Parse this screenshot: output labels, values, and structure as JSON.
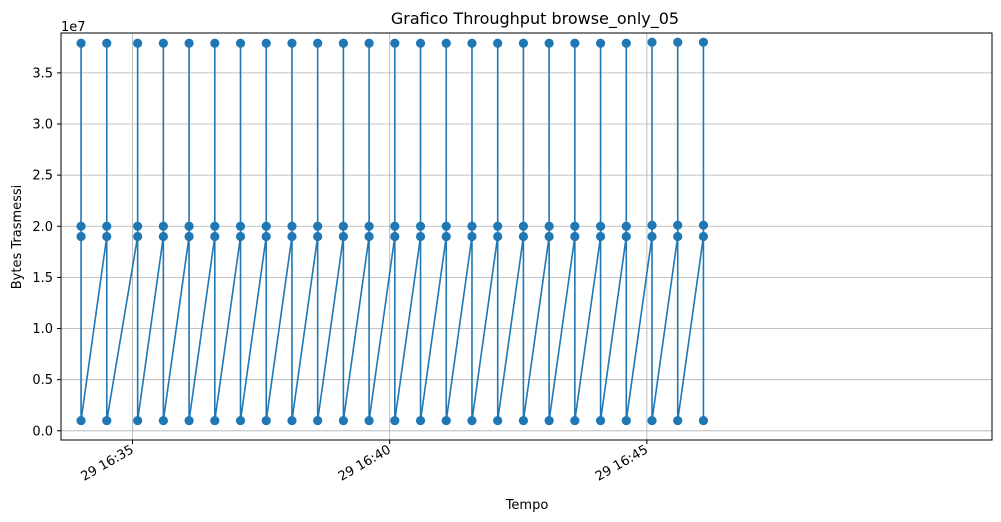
{
  "chart_data": {
    "type": "line",
    "title": "Grafico Throughput browse_only_05",
    "xlabel": "Tempo",
    "ylabel": "Bytes Trasmessi",
    "y_offset_label": "1e7",
    "ylim": [
      -0.09,
      3.89
    ],
    "y_ticks": [
      0.0,
      0.5,
      1.0,
      1.5,
      2.0,
      2.5,
      3.0,
      3.5
    ],
    "y_tick_labels": [
      "0.0",
      "0.5",
      "1.0",
      "1.5",
      "2.0",
      "2.5",
      "3.0",
      "3.5"
    ],
    "x_tick_labels": [
      "29 16:35",
      "29 16:40",
      "29 16:45"
    ],
    "x_unit": "minutes after 16:30 on day 29",
    "x_ticks": [
      5,
      10,
      15
    ],
    "xlim": [
      3.61,
      21.71
    ],
    "grid": true,
    "marker": "circle",
    "series_color": "#1f77b4",
    "cycles": [
      {
        "x": 4.0,
        "values": [
          1.9,
          2.0,
          3.79,
          0.1
        ]
      },
      {
        "x": 4.5,
        "values": [
          1.9,
          2.0,
          3.79,
          0.1
        ]
      },
      {
        "x": 5.1,
        "values": [
          1.9,
          2.0,
          3.79,
          0.1
        ]
      },
      {
        "x": 5.6,
        "values": [
          1.9,
          2.0,
          3.79,
          0.1
        ]
      },
      {
        "x": 6.1,
        "values": [
          1.9,
          2.0,
          3.79,
          0.1
        ]
      },
      {
        "x": 6.6,
        "values": [
          1.9,
          2.0,
          3.79,
          0.1
        ]
      },
      {
        "x": 7.1,
        "values": [
          1.9,
          2.0,
          3.79,
          0.1
        ]
      },
      {
        "x": 7.6,
        "values": [
          1.9,
          2.0,
          3.79,
          0.1
        ]
      },
      {
        "x": 8.1,
        "values": [
          1.9,
          2.0,
          3.79,
          0.1
        ]
      },
      {
        "x": 8.6,
        "values": [
          1.9,
          2.0,
          3.79,
          0.1
        ]
      },
      {
        "x": 9.1,
        "values": [
          1.9,
          2.0,
          3.79,
          0.1
        ]
      },
      {
        "x": 9.6,
        "values": [
          1.9,
          2.0,
          3.79,
          0.1
        ]
      },
      {
        "x": 10.1,
        "values": [
          1.9,
          2.0,
          3.79,
          0.1
        ]
      },
      {
        "x": 10.6,
        "values": [
          1.9,
          2.0,
          3.79,
          0.1
        ]
      },
      {
        "x": 11.1,
        "values": [
          1.9,
          2.0,
          3.79,
          0.1
        ]
      },
      {
        "x": 11.6,
        "values": [
          1.9,
          2.0,
          3.79,
          0.1
        ]
      },
      {
        "x": 12.1,
        "values": [
          1.9,
          2.0,
          3.79,
          0.1
        ]
      },
      {
        "x": 12.6,
        "values": [
          1.9,
          2.0,
          3.79,
          0.1
        ]
      },
      {
        "x": 13.1,
        "values": [
          1.9,
          2.0,
          3.79,
          0.1
        ]
      },
      {
        "x": 13.6,
        "values": [
          1.9,
          2.0,
          3.79,
          0.1
        ]
      },
      {
        "x": 14.1,
        "values": [
          1.9,
          2.0,
          3.79,
          0.1
        ]
      },
      {
        "x": 14.6,
        "values": [
          1.9,
          2.0,
          3.79,
          0.1
        ]
      },
      {
        "x": 15.1,
        "values": [
          1.9,
          2.01,
          3.8,
          0.1
        ]
      },
      {
        "x": 15.6,
        "values": [
          1.9,
          2.01,
          3.8,
          0.1
        ]
      },
      {
        "x": 16.1,
        "values": [
          1.9,
          2.01,
          3.8,
          0.1
        ]
      }
    ]
  }
}
